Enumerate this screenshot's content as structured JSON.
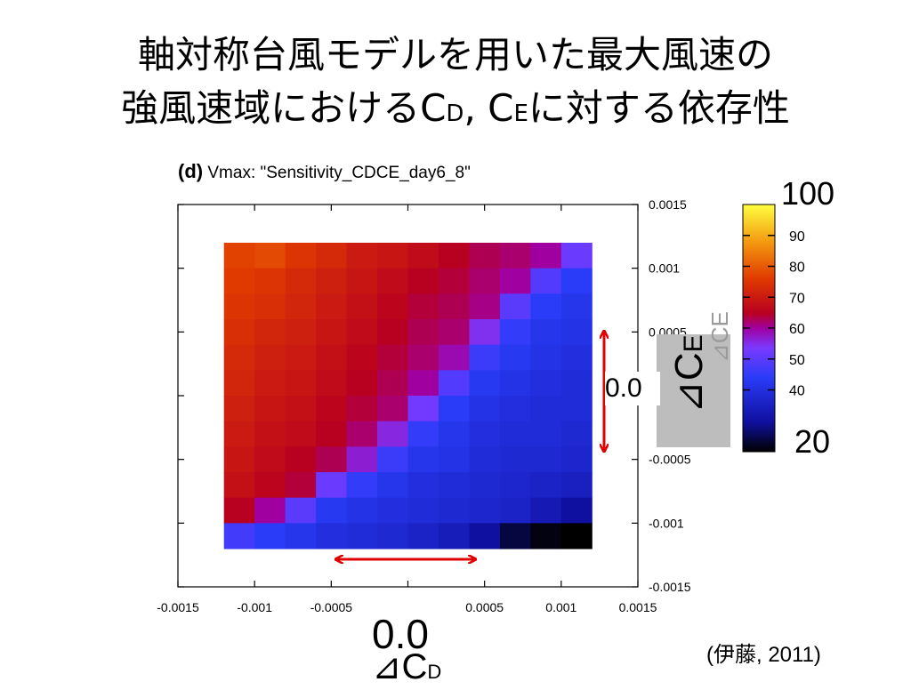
{
  "slide": {
    "title_line1": "軸対称台風モデルを用いた最大風速の",
    "title_line2_prefix": "強風速域における",
    "title_cd_main": "C",
    "title_cd_sub": "D",
    "title_sep": ", ",
    "title_ce_main": "C",
    "title_ce_sub": "E",
    "title_line2_suffix": "に対する依存性",
    "citation": "(伊藤, 2011)",
    "zero_x_label": "0.0",
    "zero_y_label": "0.0",
    "delta_cd_symbol": "⊿C",
    "delta_cd_sub": "D",
    "delta_ce_label": "⊿C",
    "delta_ce_sub": "E",
    "delta_ce_ghost": "⊿CE"
  },
  "colors": {
    "arrow": "#e00000",
    "gray_box": "#bdbdbd"
  },
  "chart_data": {
    "type": "heatmap",
    "panel_label": "(d)",
    "title": "Vmax: \"Sensitivity_CDCE_day6_8\"",
    "xlim": [
      -0.0015,
      0.0015
    ],
    "ylim": [
      -0.0015,
      0.0015
    ],
    "x_ticks": [
      "-0.0015",
      "-0.001",
      "-0.0005",
      "",
      "0.0005",
      "0.001",
      "0.0015"
    ],
    "x_tick_values": [
      -0.0015,
      -0.001,
      -0.0005,
      0,
      0.0005,
      0.001,
      0.0015
    ],
    "y_ticks": [
      "0.0015",
      "0.001",
      "0.0005",
      "",
      "-0.0005",
      "-0.001",
      "-0.0015"
    ],
    "y_tick_values": [
      0.0015,
      0.001,
      0.0005,
      0,
      -0.0005,
      -0.001,
      -0.0015
    ],
    "cell_x": [
      -0.0011,
      -0.0009,
      -0.0007,
      -0.0005,
      -0.0003,
      -0.0001,
      0.0001,
      0.0003,
      0.0005,
      0.0007,
      0.0009,
      0.0011
    ],
    "cell_y": [
      0.0011,
      0.0009,
      0.0007,
      0.0005,
      0.0003,
      0.0001,
      -0.0001,
      -0.0003,
      -0.0005,
      -0.0007,
      -0.0009,
      -0.0011
    ],
    "values": [
      [
        77,
        78,
        75,
        73,
        70,
        69,
        67,
        65,
        63,
        62,
        60,
        52
      ],
      [
        76,
        75,
        73,
        71,
        69,
        67,
        65,
        64,
        62,
        60,
        49,
        44
      ],
      [
        75,
        74,
        72,
        70,
        68,
        66,
        64,
        63,
        61,
        50,
        44,
        42
      ],
      [
        74,
        72,
        71,
        69,
        67,
        65,
        63,
        62,
        55,
        45,
        42,
        41
      ],
      [
        73,
        71,
        70,
        68,
        66,
        64,
        62,
        59,
        46,
        43,
        41,
        40
      ],
      [
        72,
        70,
        69,
        67,
        65,
        63,
        60,
        49,
        43,
        41,
        40,
        39
      ],
      [
        71,
        69,
        68,
        66,
        64,
        62,
        53,
        44,
        41,
        40,
        39,
        39
      ],
      [
        70,
        68,
        67,
        65,
        62,
        56,
        45,
        42,
        40,
        39,
        39,
        38
      ],
      [
        69,
        67,
        65,
        63,
        57,
        46,
        42,
        41,
        39,
        38,
        38,
        37
      ],
      [
        68,
        66,
        64,
        52,
        45,
        42,
        40,
        39,
        38,
        37,
        36,
        35
      ],
      [
        65,
        60,
        50,
        43,
        41,
        40,
        39,
        38,
        37,
        36,
        33,
        30
      ],
      [
        47,
        44,
        42,
        40,
        39,
        38,
        36,
        34,
        30,
        24,
        21,
        20
      ]
    ],
    "colorbar": {
      "min": 20,
      "max": 100,
      "end_labels": [
        "100",
        "20"
      ],
      "tick_labels": [
        "90",
        "80",
        "70",
        "60",
        "50",
        "40"
      ],
      "tick_values": [
        90,
        80,
        70,
        60,
        50,
        40
      ]
    }
  }
}
